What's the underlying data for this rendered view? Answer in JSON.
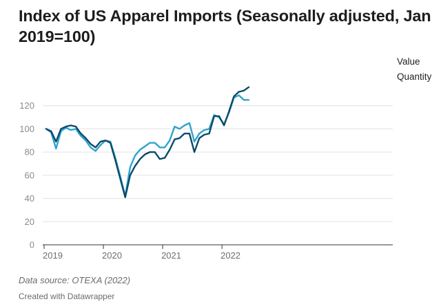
{
  "chart_data": {
    "type": "line",
    "title": "Index of US Apparel Imports (Seasonally adjusted, Jan 2019=100)",
    "xlabel": "",
    "ylabel": "",
    "ylim": [
      0,
      140
    ],
    "y_ticks": [
      0,
      20,
      40,
      60,
      80,
      100,
      120
    ],
    "x_ticks": [
      "2019",
      "2020",
      "2021",
      "2022"
    ],
    "x_start": "2019-01",
    "grid": true,
    "legend": "right end of lines",
    "colors": {
      "Value": "#0b4a6a",
      "Quantity": "#2ea3cf"
    },
    "series": [
      {
        "name": "Value",
        "values": [
          100,
          98,
          89,
          100,
          102,
          103,
          102,
          96,
          92,
          87,
          84,
          89,
          90,
          88,
          73,
          57,
          41,
          60,
          68,
          74,
          78,
          80,
          80,
          74,
          75,
          82,
          91,
          92,
          96,
          96,
          80,
          92,
          95,
          96,
          111,
          111,
          103,
          115,
          128,
          132,
          133,
          136
        ]
      },
      {
        "name": "Quantity",
        "values": [
          100,
          97,
          83,
          98,
          101,
          99,
          100,
          94,
          90,
          84,
          81,
          86,
          90,
          89,
          75,
          59,
          42,
          67,
          77,
          82,
          85,
          88,
          88,
          84,
          84,
          90,
          102,
          100,
          103,
          105,
          89,
          96,
          99,
          100,
          112,
          110,
          104,
          114,
          127,
          129,
          125,
          125
        ]
      }
    ]
  },
  "source": "Data source: OTEXA (2022)",
  "credit": "Created with Datawrapper"
}
